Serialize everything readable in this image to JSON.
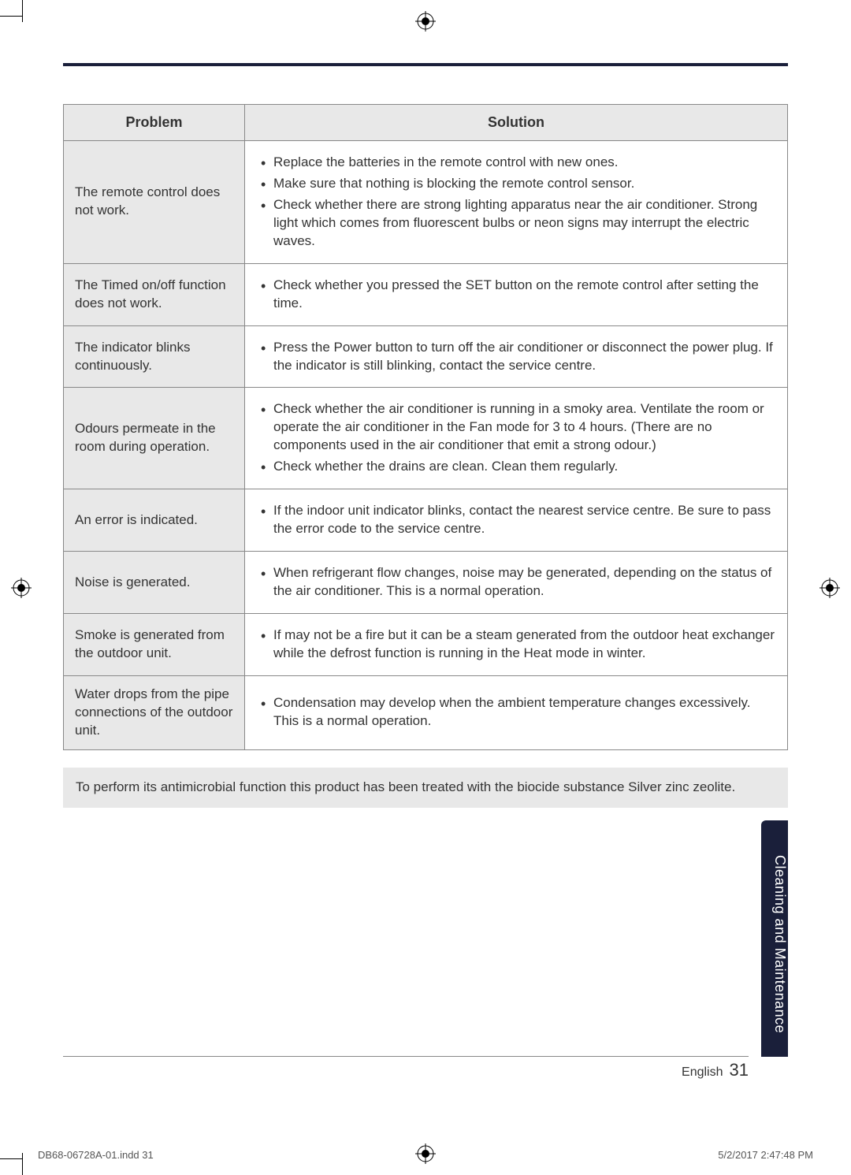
{
  "colors": {
    "dark_navy": "#1a1f3a",
    "cell_grey": "#e8e8e8",
    "border_grey": "#888888",
    "text": "#333333",
    "page_bg": "#ffffff"
  },
  "typography": {
    "body_fontsize_pt": 12,
    "header_fontsize_pt": 13,
    "sidetab_fontsize_pt": 13,
    "pagenum_fontsize_pt": 16
  },
  "table": {
    "headers": {
      "problem": "Problem",
      "solution": "Solution"
    },
    "rows": [
      {
        "problem": "The remote control does not work.",
        "solution": [
          "Replace the batteries in the remote control with new ones.",
          "Make sure that nothing is blocking the remote control sensor.",
          "Check whether there are strong lighting apparatus near the air conditioner. Strong light which comes from fluorescent bulbs or neon signs may interrupt the electric waves."
        ]
      },
      {
        "problem": "The Timed on/off function does not work.",
        "solution": [
          "Check whether you pressed the SET button on the remote control after setting the time."
        ]
      },
      {
        "problem": "The indicator blinks continuously.",
        "solution": [
          "Press the Power button to turn off the air conditioner or disconnect the power plug. If the indicator is still blinking, contact the service centre."
        ]
      },
      {
        "problem": "Odours permeate in the room during operation.",
        "solution": [
          "Check whether the air conditioner is running in a smoky area. Ventilate the room or operate the air conditioner in the Fan mode for 3 to 4 hours. (There are no components used in the air conditioner that emit a strong odour.)",
          "Check whether the drains are clean. Clean them regularly."
        ]
      },
      {
        "problem": "An error is indicated.",
        "solution": [
          "If the indoor unit indicator blinks, contact the nearest service centre. Be sure to pass the error code to the service centre."
        ]
      },
      {
        "problem": "Noise is generated.",
        "solution": [
          "When refrigerant flow changes, noise may be generated, depending on the status of the air conditioner. This is a normal operation."
        ]
      },
      {
        "problem": "Smoke is generated from the outdoor unit.",
        "solution": [
          "If may not be a fire but it can be a steam generated from the outdoor heat exchanger while the defrost function is running in the Heat mode in winter."
        ]
      },
      {
        "problem": "Water drops from the pipe connections of the outdoor unit.",
        "solution": [
          "Condensation may develop when the ambient temperature changes excessively. This is a normal operation."
        ]
      }
    ]
  },
  "biocide_note": "To perform its antimicrobial function this product has been treated with the biocide substance Silver zinc zeolite.",
  "side_tab": "Cleaning and Maintenance",
  "footer": {
    "language": "English",
    "page_num": "31"
  },
  "print_footer": {
    "left": "DB68-06728A-01.indd   31",
    "right": "5/2/2017   2:47:48 PM"
  }
}
